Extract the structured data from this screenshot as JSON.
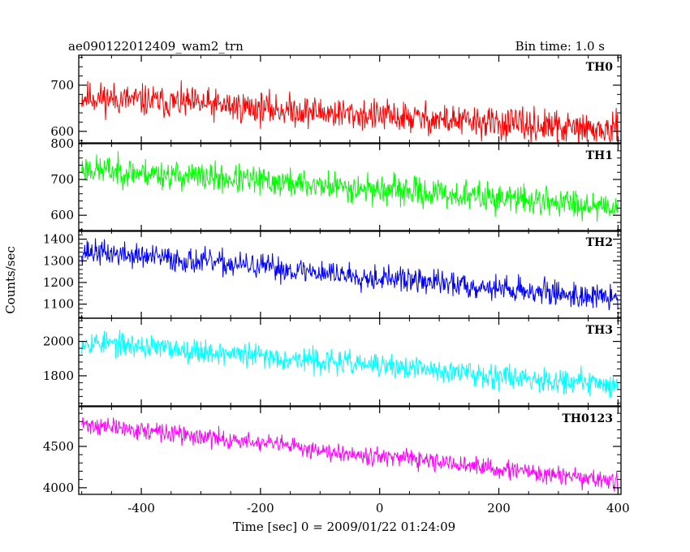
{
  "header": {
    "title": "ae090122012409_wam2_trn",
    "bin_time": "Bin time: 1.0 s"
  },
  "chart_data": {
    "type": "line",
    "ylabel": "Counts/sec",
    "xlabel": "Time [sec] 0 = 2009/01/22 01:24:09",
    "xlim": [
      -505,
      405
    ],
    "x_ticks": [
      -400,
      -200,
      0,
      200,
      400
    ],
    "panels": [
      {
        "label": "TH0",
        "color": "#ff0000",
        "ylim": [
          575,
          765
        ],
        "y_ticks": [
          600,
          700
        ],
        "trend": {
          "start": 675,
          "end": 600
        },
        "noise_amplitude": 30,
        "seed": 11
      },
      {
        "label": "TH1",
        "color": "#00ff00",
        "ylim": [
          555,
          800
        ],
        "y_ticks": [
          600,
          700,
          800
        ],
        "trend": {
          "start": 730,
          "end": 625
        },
        "noise_amplitude": 35,
        "seed": 23
      },
      {
        "label": "TH2",
        "color": "#0000ff",
        "ylim": [
          1035,
          1440
        ],
        "y_ticks": [
          1100,
          1200,
          1300,
          1400
        ],
        "trend": {
          "start": 1345,
          "end": 1125
        },
        "noise_amplitude": 50,
        "seed": 37
      },
      {
        "label": "TH3",
        "color": "#00ffff",
        "ylim": [
          1625,
          2135
        ],
        "y_ticks": [
          1800,
          2000
        ],
        "trend": {
          "start": 2000,
          "end": 1745
        },
        "noise_amplitude": 60,
        "seed": 53
      },
      {
        "label": "TH0123",
        "color": "#ff00ff",
        "ylim": [
          3920,
          4980
        ],
        "y_ticks": [
          4000,
          4500
        ],
        "trend": {
          "start": 4770,
          "end": 4070
        },
        "noise_amplitude": 95,
        "seed": 71
      }
    ]
  }
}
